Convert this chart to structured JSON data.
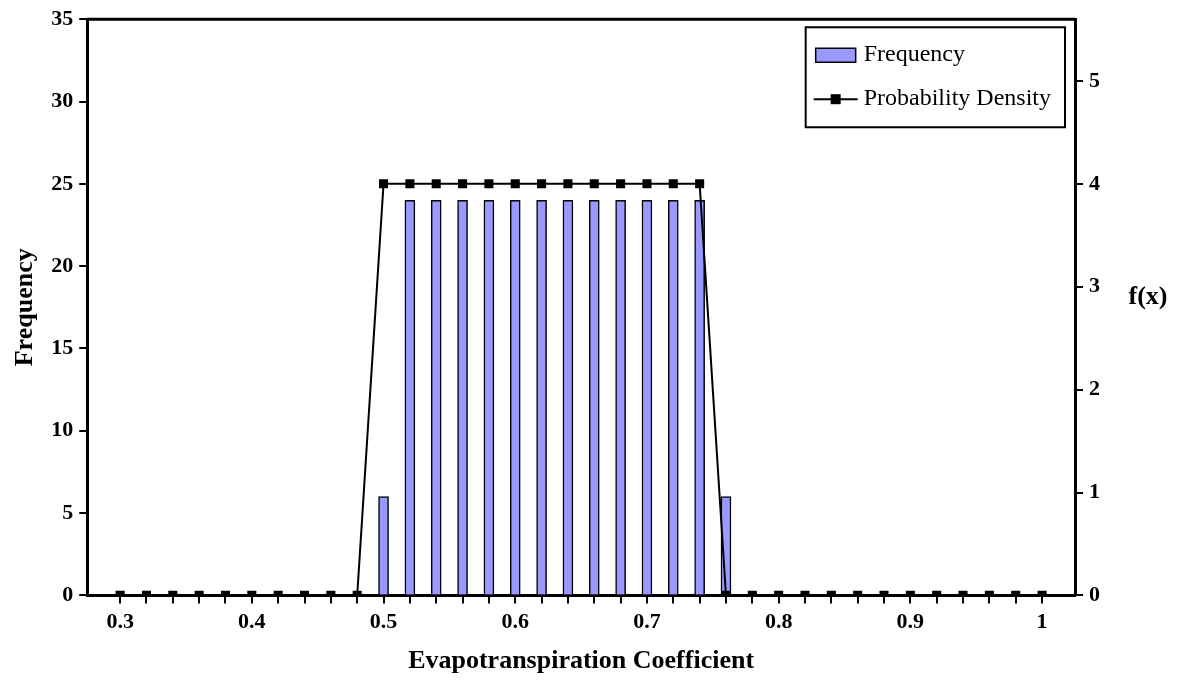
{
  "chart_data": {
    "type": "bar",
    "xlabel": "Evapotranspiration Coefficient",
    "ylabel": "Frequency",
    "y2label": "f(x)",
    "x": [
      0.3,
      0.32,
      0.34,
      0.36,
      0.38,
      0.4,
      0.42,
      0.44,
      0.46,
      0.48,
      0.5,
      0.52,
      0.54,
      0.56,
      0.58,
      0.6,
      0.62,
      0.64,
      0.66,
      0.68,
      0.7,
      0.72,
      0.74,
      0.76,
      0.78,
      0.8,
      0.82,
      0.84,
      0.86,
      0.88,
      0.9,
      0.92,
      0.94,
      0.96,
      0.98,
      1.0
    ],
    "series": [
      {
        "name": "Frequency",
        "color": "#9999ff",
        "values": [
          0,
          0,
          0,
          0,
          0,
          0,
          0,
          0,
          0,
          0,
          6,
          24,
          24,
          24,
          24,
          24,
          24,
          24,
          24,
          24,
          24,
          24,
          24,
          6,
          0,
          0,
          0,
          0,
          0,
          0,
          0,
          0,
          0,
          0,
          0,
          0
        ]
      },
      {
        "name": "Probability Density",
        "type": "line",
        "axis": "y2",
        "color": "#000000",
        "marker": "square",
        "values": [
          0,
          0,
          0,
          0,
          0,
          0,
          0,
          0,
          0,
          0,
          4,
          4,
          4,
          4,
          4,
          4,
          4,
          4,
          4,
          4,
          4,
          4,
          4,
          0,
          0,
          0,
          0,
          0,
          0,
          0,
          0,
          0,
          0,
          0,
          0,
          0
        ]
      }
    ],
    "xlim": [
      0.275,
      1.025
    ],
    "xticks": [
      0.3,
      {
        "value": 0.32,
        "label": null
      },
      {
        "value": 0.34,
        "label": null
      },
      {
        "value": 0.36,
        "label": null
      },
      {
        "value": 0.38,
        "label": null
      },
      0.4,
      {
        "value": 0.42,
        "label": null
      },
      {
        "value": 0.44,
        "label": null
      },
      {
        "value": 0.46,
        "label": null
      },
      {
        "value": 0.48,
        "label": null
      },
      0.5,
      {
        "value": 0.52,
        "label": null
      },
      {
        "value": 0.54,
        "label": null
      },
      {
        "value": 0.56,
        "label": null
      },
      {
        "value": 0.58,
        "label": null
      },
      0.6,
      {
        "value": 0.62,
        "label": null
      },
      {
        "value": 0.64,
        "label": null
      },
      {
        "value": 0.66,
        "label": null
      },
      {
        "value": 0.68,
        "label": null
      },
      0.7,
      {
        "value": 0.72,
        "label": null
      },
      {
        "value": 0.74,
        "label": null
      },
      {
        "value": 0.76,
        "label": null
      },
      {
        "value": 0.78,
        "label": null
      },
      0.8,
      {
        "value": 0.82,
        "label": null
      },
      {
        "value": 0.84,
        "label": null
      },
      {
        "value": 0.86,
        "label": null
      },
      {
        "value": 0.88,
        "label": null
      },
      0.9,
      {
        "value": 0.92,
        "label": null
      },
      {
        "value": 0.94,
        "label": null
      },
      {
        "value": 0.96,
        "label": null
      },
      {
        "value": 0.98,
        "label": null
      },
      1
    ],
    "ylim": [
      0,
      35
    ],
    "yticks": [
      0,
      5,
      10,
      15,
      20,
      25,
      30,
      35
    ],
    "y2lim": [
      0,
      5.6
    ],
    "y2ticks": [
      0,
      1,
      2,
      3,
      4,
      5
    ],
    "grid": false,
    "legend": "top right"
  }
}
